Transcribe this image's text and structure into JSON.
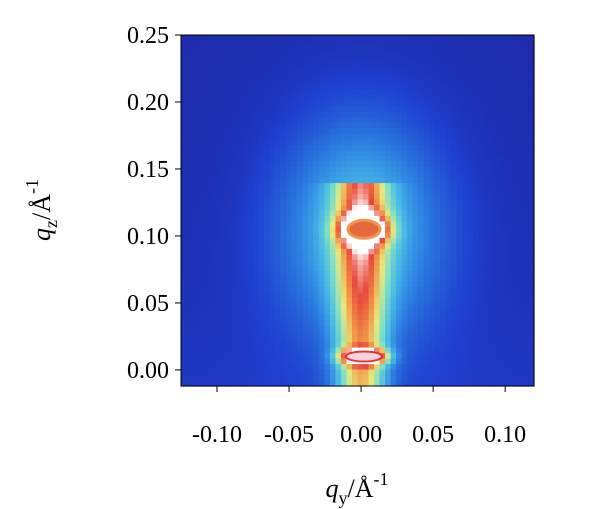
{
  "chart_data": {
    "type": "heatmap",
    "title": "",
    "xlabel": {
      "symbol": "q",
      "subscript": "y",
      "unit": "/Å",
      "exponent": "-1"
    },
    "ylabel": {
      "symbol": "q",
      "subscript": "z",
      "unit": "/Å",
      "exponent": "-1"
    },
    "xlim": [
      -0.125,
      0.12
    ],
    "ylim": [
      -0.012,
      0.25
    ],
    "x_ticks": [
      -0.1,
      -0.05,
      0.0,
      0.05,
      0.1
    ],
    "x_tick_labels": [
      "-0.10",
      "-0.05",
      "0.00",
      "0.05",
      "0.10"
    ],
    "y_ticks": [
      0.0,
      0.05,
      0.1,
      0.15,
      0.2,
      0.25
    ],
    "y_tick_labels": [
      "0.00",
      "0.05",
      "0.10",
      "0.15",
      "0.20",
      "0.25"
    ],
    "colormap": [
      "#1a1a8c",
      "#1f3fcf",
      "#2a7ae0",
      "#45b6e8",
      "#7fe0c6",
      "#e8e87a",
      "#f29a4a",
      "#e8473a",
      "#ffffff"
    ],
    "features": [
      {
        "label": "specular peak",
        "qy": 0.002,
        "qz": 0.01,
        "intensity": 1.0
      },
      {
        "label": "off-specular peak",
        "qy": 0.002,
        "qz": 0.105,
        "intensity": 0.82
      },
      {
        "label": "vertical rod",
        "qy": 0.0,
        "qz_range": [
          0.0,
          0.14
        ],
        "intensity": 0.55
      },
      {
        "label": "diffuse cone",
        "qy": 0.0,
        "qz": 0.105,
        "intensity": 0.35
      }
    ],
    "grid": false
  }
}
